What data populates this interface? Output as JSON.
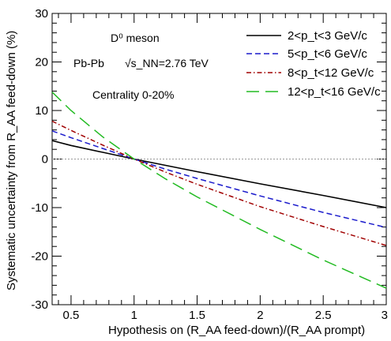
{
  "chart_data": {
    "type": "line",
    "xlabel": "Hypothesis on (R_AA feed-down)/(R_AA prompt)",
    "ylabel": "Systematic uncertainty from R_AA feed-down (%)",
    "xlim": [
      0.35,
      3.0
    ],
    "ylim": [
      -30,
      30
    ],
    "x_ticks": [
      0.5,
      1,
      1.5,
      2,
      2.5,
      3
    ],
    "x_tick_labels": [
      "0.5",
      "1",
      "1.5",
      "2",
      "2.5",
      "3"
    ],
    "y_ticks": [
      -30,
      -20,
      -10,
      0,
      10,
      20,
      30
    ],
    "y_tick_labels": [
      "-30",
      "-20",
      "-10",
      "0",
      "10",
      "20",
      "30"
    ],
    "grid": false,
    "reference_line": {
      "y": 0,
      "style": "dotted",
      "color": "#999999"
    },
    "legend_position": "top-right",
    "annotations": [
      "D⁰ meson",
      "Pb-Pb",
      "√s_NN=2.76 TeV",
      "Centrality 0-20%"
    ],
    "series": [
      {
        "name": "2<p_t<3 GeV/c",
        "color": "#000000",
        "dash": "solid",
        "x": [
          0.35,
          0.5,
          0.75,
          1.0,
          1.25,
          1.5,
          2.0,
          2.5,
          3.0
        ],
        "y": [
          3.8,
          2.8,
          1.4,
          0.0,
          -1.3,
          -2.6,
          -5.1,
          -7.5,
          -10.0
        ]
      },
      {
        "name": "5<p_t<6 GeV/c",
        "color": "#1a1acc",
        "dash": "dash",
        "x": [
          0.35,
          0.5,
          0.75,
          1.0,
          1.25,
          1.5,
          2.0,
          2.5,
          3.0
        ],
        "y": [
          5.8,
          4.4,
          2.2,
          0.0,
          -2.1,
          -4.0,
          -7.6,
          -11.0,
          -14.1
        ]
      },
      {
        "name": "8<p_t<12 GeV/c",
        "color": "#a00000",
        "dash": "dashdot",
        "x": [
          0.35,
          0.5,
          0.75,
          1.0,
          1.25,
          1.5,
          2.0,
          2.5,
          3.0
        ],
        "y": [
          7.8,
          5.9,
          2.9,
          0.0,
          -2.7,
          -5.2,
          -9.8,
          -13.9,
          -17.8
        ]
      },
      {
        "name": "12<p_t<16 GeV/c",
        "color": "#22bb22",
        "dash": "longdash",
        "x": [
          0.35,
          0.5,
          0.75,
          1.0,
          1.25,
          1.5,
          2.0,
          2.5,
          3.0
        ],
        "y": [
          13.8,
          10.0,
          4.6,
          0.0,
          -4.1,
          -7.8,
          -14.5,
          -20.8,
          -26.6
        ]
      }
    ]
  }
}
